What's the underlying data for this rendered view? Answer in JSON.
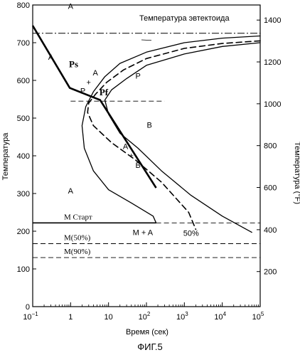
{
  "figure_caption": "ФИГ.5",
  "chart_data": {
    "type": "line",
    "title": "",
    "xlabel": "Время (сек)",
    "ylabel": "Температура",
    "ylabel_right": "Температура (°F)",
    "x_scale": "log",
    "xlim": [
      0.1,
      100000
    ],
    "ylim": [
      0,
      800
    ],
    "grid": false,
    "x_ticks": [
      {
        "value": 0.1,
        "base": "10",
        "exp": "−1"
      },
      {
        "value": 1,
        "base": "1",
        "exp": ""
      },
      {
        "value": 10,
        "base": "10",
        "exp": ""
      },
      {
        "value": 100,
        "base": "10",
        "exp": "2"
      },
      {
        "value": 1000,
        "base": "10",
        "exp": "3"
      },
      {
        "value": 10000,
        "base": "10",
        "exp": "4"
      },
      {
        "value": 100000,
        "base": "10",
        "exp": "5"
      }
    ],
    "y_ticks": [
      0,
      100,
      200,
      300,
      400,
      500,
      600,
      700,
      800
    ],
    "y_ticks_right": [
      {
        "label": "200",
        "y": 93
      },
      {
        "label": "400",
        "y": 204
      },
      {
        "label": "600",
        "y": 316
      },
      {
        "label": "800",
        "y": 427
      },
      {
        "label": "1000",
        "y": 538
      },
      {
        "label": "1200",
        "y": 649
      },
      {
        "label": "1400",
        "y": 760
      }
    ],
    "horizontal_lines": [
      {
        "name": "eutectoid-line",
        "y": 725,
        "style": "dashdot",
        "label": "Температура эвтектоида",
        "x_from": 0.1,
        "x_to": 100000
      },
      {
        "name": "m-start-line",
        "y": 222,
        "style": "solid",
        "label": "M Старт",
        "x_from": 0.1,
        "x_to": 180
      },
      {
        "name": "m-start-line-extension",
        "y": 222,
        "style": "dashed",
        "label": "",
        "x_from": 180,
        "x_to": 100000
      },
      {
        "name": "m50-line",
        "y": 167,
        "style": "dashed",
        "label": "M(50%)",
        "x_from": 0.1,
        "x_to": 100000
      },
      {
        "name": "m90-line",
        "y": 130,
        "style": "dashed",
        "label": "M(90%)",
        "x_from": 0.1,
        "x_to": 100000
      },
      {
        "name": "pf-ref-line",
        "y": 545,
        "style": "dashed",
        "label": "",
        "x_from": 1,
        "x_to": 300
      }
    ],
    "curves": [
      {
        "name": "transformation-start-curve",
        "style": "solid",
        "points": [
          [
            100000,
            718
          ],
          [
            10000,
            712
          ],
          [
            1000,
            700
          ],
          [
            100,
            675
          ],
          [
            20,
            645
          ],
          [
            8,
            610
          ],
          [
            4,
            570
          ],
          [
            2.5,
            530
          ],
          [
            2,
            480
          ],
          [
            2.3,
            420
          ],
          [
            4,
            360
          ],
          [
            10,
            310
          ],
          [
            40,
            275
          ],
          [
            150,
            240
          ],
          [
            180,
            222
          ]
        ]
      },
      {
        "name": "transformation-finish-curve",
        "style": "solid",
        "points": [
          [
            100000,
            700
          ],
          [
            10000,
            690
          ],
          [
            1000,
            670
          ],
          [
            100,
            640
          ],
          [
            30,
            605
          ],
          [
            12,
            575
          ],
          [
            8,
            548
          ],
          [
            10,
            510
          ],
          [
            20,
            460
          ],
          [
            60,
            420
          ],
          [
            250,
            360
          ],
          [
            1500,
            295
          ],
          [
            10000,
            240
          ],
          [
            60000,
            197
          ]
        ]
      },
      {
        "name": "fifty-percent-curve",
        "style": "dashed",
        "points": [
          [
            100000,
            705
          ],
          [
            10000,
            698
          ],
          [
            1000,
            685
          ],
          [
            100,
            658
          ],
          [
            25,
            628
          ],
          [
            9,
            595
          ],
          [
            4.5,
            563
          ],
          [
            3,
            540
          ],
          [
            2.8,
            515
          ],
          [
            4,
            480
          ],
          [
            12,
            435
          ],
          [
            50,
            390
          ],
          [
            250,
            330
          ],
          [
            1300,
            250
          ],
          [
            2000,
            205
          ]
        ]
      }
    ],
    "cooling_path": {
      "name": "cooling-path",
      "style": "solid-thick",
      "points": [
        [
          0.1,
          745
        ],
        [
          0.95,
          580
        ],
        [
          6,
          548
        ],
        [
          180,
          315
        ]
      ]
    },
    "point_labels": [
      {
        "text": "Ps",
        "x": 1.2,
        "y": 635,
        "bold": true,
        "serif": true
      },
      {
        "text": "Pf",
        "x": 7.5,
        "y": 560,
        "bold": true,
        "serif": true
      },
      {
        "text": "A",
        "x": 1.0,
        "y": 790,
        "bold": false
      },
      {
        "text": "A",
        "x": 0.3,
        "y": 655,
        "bold": false
      },
      {
        "text": "A",
        "x": 1.0,
        "y": 300,
        "bold": false
      },
      {
        "text": "P",
        "x": 60,
        "y": 605,
        "bold": false
      },
      {
        "text": "B",
        "x": 120,
        "y": 475,
        "bold": false
      },
      {
        "text": "P",
        "x": 2.1,
        "y": 565,
        "bold": false
      },
      {
        "text": "+",
        "x": 3.0,
        "y": 588,
        "bold": false
      },
      {
        "text": "A",
        "x": 4.5,
        "y": 613,
        "bold": false
      },
      {
        "text": "A",
        "x": 28,
        "y": 418,
        "bold": false
      },
      {
        "text": "+",
        "x": 40,
        "y": 393,
        "bold": false
      },
      {
        "text": "B",
        "x": 60,
        "y": 368,
        "bold": false
      },
      {
        "text": "50%",
        "x": 1500,
        "y": 188,
        "bold": false
      },
      {
        "text": "M + A",
        "x": 80,
        "y": 190,
        "bold": false
      }
    ]
  }
}
